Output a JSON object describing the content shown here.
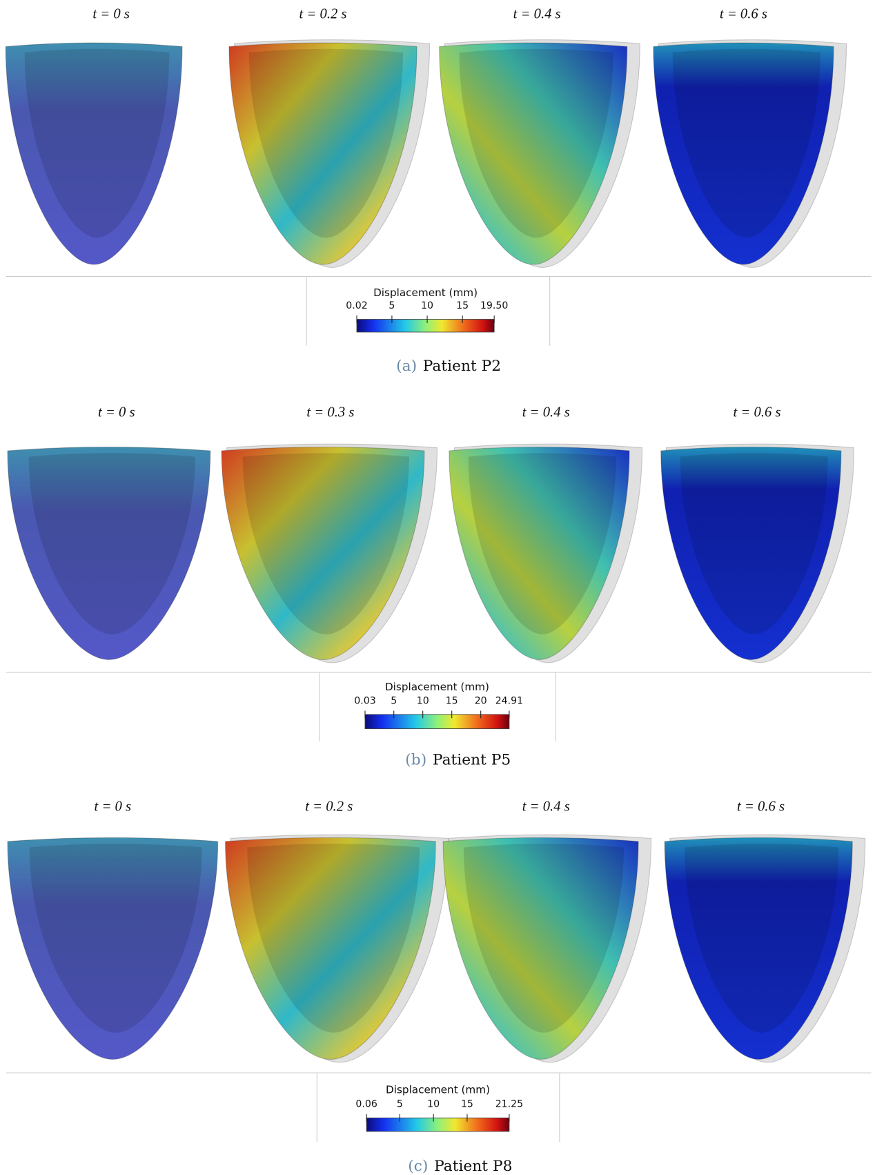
{
  "panels": [
    {
      "times": [
        "t = 0 s",
        "t = 0.2 s",
        "t = 0.4 s",
        "t = 0.6 s"
      ],
      "colorbar": {
        "title": "Displacement (mm)",
        "range": [
          0.02,
          19.5
        ],
        "ticks": [
          0.02,
          5,
          10,
          15,
          {
            "value": 19.5,
            "label": "19.50"
          }
        ]
      },
      "caption": {
        "label": "(a)",
        "text": "Patient P2"
      }
    },
    {
      "times": [
        "t = 0 s",
        "t = 0.3 s",
        "t = 0.4 s",
        "t = 0.6 s"
      ],
      "colorbar": {
        "title": "Displacement (mm)",
        "range": [
          0.03,
          24.91
        ],
        "ticks": [
          0.03,
          5,
          10,
          15,
          20,
          24.91
        ]
      },
      "caption": {
        "label": "(b)",
        "text": "Patient P5"
      }
    },
    {
      "times": [
        "t = 0 s",
        "t = 0.2 s",
        "t = 0.4 s",
        "t = 0.6 s"
      ],
      "colorbar": {
        "title": "Displacement (mm)",
        "range": [
          0.06,
          21.25
        ],
        "ticks": [
          0.06,
          5,
          10,
          15,
          21.25
        ]
      },
      "caption": {
        "label": "(c)",
        "text": "Patient P8"
      }
    }
  ]
}
